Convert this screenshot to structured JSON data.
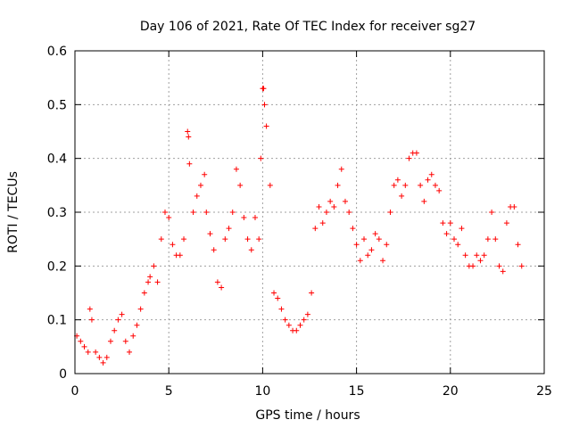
{
  "chart_data": {
    "type": "scatter",
    "title": "Day 106 of 2021, Rate Of TEC Index for receiver sg27",
    "xlabel": "GPS time / hours",
    "ylabel": "ROTI / TECUs",
    "xlim": [
      0,
      25
    ],
    "ylim": [
      0,
      0.6
    ],
    "x_ticks": [
      "0",
      "5",
      "10",
      "15",
      "20",
      "25"
    ],
    "y_ticks": [
      "0",
      "0.1",
      "0.2",
      "0.3",
      "0.4",
      "0.5",
      "0.6"
    ],
    "x_tick_values": [
      0,
      5,
      10,
      15,
      20,
      25
    ],
    "y_tick_values": [
      0,
      0.1,
      0.2,
      0.3,
      0.4,
      0.5,
      0.6
    ],
    "grid": true,
    "legend": "none",
    "marker": "+",
    "color": "#ff0000",
    "series": [
      {
        "x": [
          0.1,
          0.3,
          0.5,
          0.7,
          0.8,
          0.9,
          1.1,
          1.3,
          1.5,
          1.7,
          1.9,
          2.1,
          2.3,
          2.5,
          2.7,
          2.9,
          3.1,
          3.3,
          3.5,
          3.7,
          3.9,
          4.0,
          4.2,
          4.4,
          4.6,
          4.8,
          5.0,
          5.2,
          5.4,
          5.6,
          5.8,
          6.0,
          6.05,
          6.1,
          6.3,
          6.5,
          6.7,
          6.9,
          7.0,
          7.2,
          7.4,
          7.6,
          7.8,
          8.0,
          8.2,
          8.4,
          8.6,
          8.8,
          9.0,
          9.2,
          9.4,
          9.6,
          9.8,
          9.9,
          10.0,
          10.05,
          10.1,
          10.2,
          10.4,
          10.6,
          10.8,
          11.0,
          11.2,
          11.4,
          11.6,
          11.8,
          12.0,
          12.2,
          12.4,
          12.6,
          12.8,
          13.0,
          13.2,
          13.4,
          13.6,
          13.8,
          14.0,
          14.2,
          14.4,
          14.6,
          14.8,
          15.0,
          15.2,
          15.4,
          15.6,
          15.8,
          16.0,
          16.2,
          16.4,
          16.6,
          16.8,
          17.0,
          17.2,
          17.4,
          17.6,
          17.8,
          18.0,
          18.2,
          18.4,
          18.6,
          18.8,
          19.0,
          19.2,
          19.4,
          19.6,
          19.8,
          20.0,
          20.2,
          20.4,
          20.6,
          20.8,
          21.0,
          21.2,
          21.4,
          21.6,
          21.8,
          22.0,
          22.2,
          22.4,
          22.6,
          22.8,
          23.0,
          23.2,
          23.4,
          23.6,
          23.8
        ],
        "y": [
          0.07,
          0.06,
          0.05,
          0.04,
          0.12,
          0.1,
          0.04,
          0.03,
          0.02,
          0.03,
          0.06,
          0.08,
          0.1,
          0.11,
          0.06,
          0.04,
          0.07,
          0.09,
          0.12,
          0.15,
          0.17,
          0.18,
          0.2,
          0.17,
          0.25,
          0.3,
          0.29,
          0.24,
          0.22,
          0.22,
          0.25,
          0.45,
          0.44,
          0.39,
          0.3,
          0.33,
          0.35,
          0.37,
          0.3,
          0.26,
          0.23,
          0.17,
          0.16,
          0.25,
          0.27,
          0.3,
          0.38,
          0.35,
          0.29,
          0.25,
          0.23,
          0.29,
          0.25,
          0.4,
          0.53,
          0.53,
          0.5,
          0.46,
          0.35,
          0.15,
          0.14,
          0.12,
          0.1,
          0.09,
          0.08,
          0.08,
          0.09,
          0.1,
          0.11,
          0.15,
          0.27,
          0.31,
          0.28,
          0.3,
          0.32,
          0.31,
          0.35,
          0.38,
          0.32,
          0.3,
          0.27,
          0.24,
          0.21,
          0.25,
          0.22,
          0.23,
          0.26,
          0.25,
          0.21,
          0.24,
          0.3,
          0.35,
          0.36,
          0.33,
          0.35,
          0.4,
          0.41,
          0.41,
          0.35,
          0.32,
          0.36,
          0.37,
          0.35,
          0.34,
          0.28,
          0.26,
          0.28,
          0.25,
          0.24,
          0.27,
          0.22,
          0.2,
          0.2,
          0.22,
          0.21,
          0.22,
          0.25,
          0.3,
          0.25,
          0.2,
          0.19,
          0.28,
          0.31,
          0.31,
          0.24,
          0.2
        ]
      }
    ]
  }
}
